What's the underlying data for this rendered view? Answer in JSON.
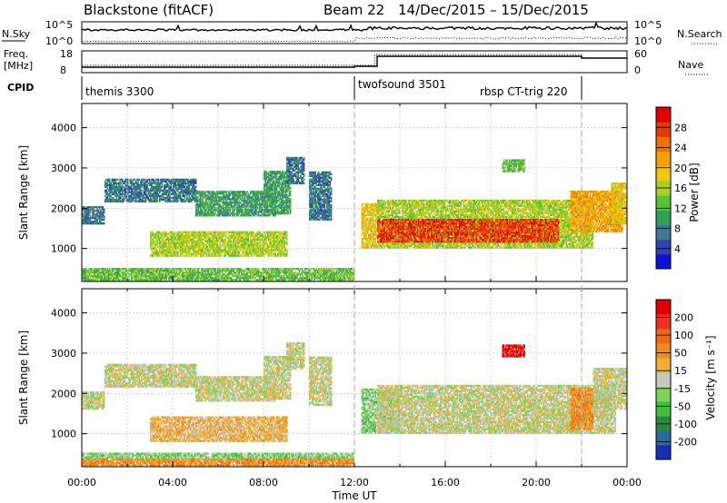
{
  "header": {
    "station": "Blackstone (fitACF)",
    "beam": "Beam 22",
    "date_range": "14/Dec/2015 – 15/Dec/2015"
  },
  "top_panels": {
    "nsky_label": "N.Sky",
    "nsky_ticks": [
      "10^5",
      "10^0"
    ],
    "nsearch_label": "N.Search",
    "nsearch_ticks": [
      "10^5",
      "10^0"
    ],
    "freq_label": "Freq.",
    "freq_unit": "[MHz]",
    "freq_ticks": [
      "18",
      "8"
    ],
    "nave_label": "Nave",
    "nave_ticks": [
      "60",
      "0"
    ],
    "cpid_label": "CPID",
    "cpid_segments": [
      {
        "name": "themis 3300",
        "start_h": 0,
        "end_h": 12
      },
      {
        "name": "twofsound 3501",
        "start_h": 12,
        "end_h": 22
      },
      {
        "name": "rbsp CT-trig 220",
        "start_h": 22,
        "end_h": 24
      }
    ]
  },
  "chart_data": [
    {
      "type": "heatmap",
      "name": "power",
      "ylabel": "Slant Range [km]",
      "yticks": [
        1000,
        2000,
        3000,
        4000
      ],
      "ylim": [
        180,
        4600
      ],
      "xlim": [
        0,
        24
      ],
      "colorbar_label": "Power [dB]",
      "colorbar_ticks": [
        "4",
        "8",
        "12",
        "16",
        "20",
        "24",
        "28"
      ],
      "colorbar_colors": [
        "#0a14d8",
        "#3244a8",
        "#3f7a8c",
        "#33a05a",
        "#5ac03a",
        "#a8d020",
        "#f0c810",
        "#f8a000",
        "#f07000",
        "#e83a00",
        "#e00000"
      ],
      "regions": [
        {
          "t0": 0.0,
          "t1": 1.0,
          "r0": 1600,
          "r1": 2050,
          "level": 2
        },
        {
          "t0": 1.0,
          "t1": 5.0,
          "r0": 2150,
          "r1": 2700,
          "level": 2
        },
        {
          "t0": 5.0,
          "t1": 8.5,
          "r0": 1800,
          "r1": 2400,
          "level": 3
        },
        {
          "t0": 8.0,
          "t1": 9.2,
          "r0": 1850,
          "r1": 2900,
          "level": 3
        },
        {
          "t0": 9.0,
          "t1": 9.8,
          "r0": 2600,
          "r1": 3250,
          "level": 2
        },
        {
          "t0": 10.0,
          "t1": 11.0,
          "r0": 1700,
          "r1": 2900,
          "level": 2
        },
        {
          "t0": 3.0,
          "t1": 9.0,
          "r0": 800,
          "r1": 1400,
          "level": 5
        },
        {
          "t0": 0.0,
          "t1": 12.0,
          "r0": 200,
          "r1": 500,
          "level": 4
        },
        {
          "t0": 12.3,
          "t1": 13.0,
          "r0": 1000,
          "r1": 2100,
          "level": 6
        },
        {
          "t0": 13.0,
          "t1": 22.5,
          "r0": 1000,
          "r1": 2200,
          "level": 5
        },
        {
          "t0": 13.0,
          "t1": 21.0,
          "r0": 1150,
          "r1": 1700,
          "level": 9
        },
        {
          "t0": 18.5,
          "t1": 19.5,
          "r0": 2900,
          "r1": 3200,
          "level": 4
        },
        {
          "t0": 21.5,
          "t1": 23.8,
          "r0": 1400,
          "r1": 2400,
          "level": 7
        },
        {
          "t0": 23.3,
          "t1": 24.0,
          "r0": 1600,
          "r1": 2600,
          "level": 6
        }
      ]
    },
    {
      "type": "heatmap",
      "name": "velocity",
      "ylabel": "Slant Range [km]",
      "yticks": [
        1000,
        2000,
        3000,
        4000
      ],
      "ylim": [
        180,
        4600
      ],
      "xlim": [
        0,
        24
      ],
      "colorbar_label": "Velocity [m s⁻¹]",
      "colorbar_ticks": [
        "200",
        "100",
        "50",
        "15",
        "-15",
        "-50",
        "-100",
        "-200"
      ],
      "colorbar_colors": [
        "#1c2db0",
        "#2a6a9c",
        "#2a8a3a",
        "#3fbf3f",
        "#7ad35a",
        "#c8c8c0",
        "#f0b030",
        "#f08a1a",
        "#f06a10",
        "#f03020",
        "#e00000"
      ],
      "regions": [
        {
          "t0": 0.0,
          "t1": 1.0,
          "r0": 1600,
          "r1": 2050,
          "level": 5
        },
        {
          "t0": 1.0,
          "t1": 5.0,
          "r0": 2150,
          "r1": 2700,
          "level": 5
        },
        {
          "t0": 5.0,
          "t1": 8.5,
          "r0": 1800,
          "r1": 2400,
          "level": 5
        },
        {
          "t0": 8.0,
          "t1": 9.2,
          "r0": 1850,
          "r1": 2900,
          "level": 5
        },
        {
          "t0": 9.0,
          "t1": 9.8,
          "r0": 2600,
          "r1": 3250,
          "level": 5
        },
        {
          "t0": 10.0,
          "t1": 11.0,
          "r0": 1700,
          "r1": 2900,
          "level": 5
        },
        {
          "t0": 3.0,
          "t1": 9.0,
          "r0": 800,
          "r1": 1400,
          "level": 6
        },
        {
          "t0": 0.0,
          "t1": 12.0,
          "r0": 350,
          "r1": 500,
          "level": 4
        },
        {
          "t0": 0.0,
          "t1": 12.0,
          "r0": 200,
          "r1": 350,
          "level": 7
        },
        {
          "t0": 12.3,
          "t1": 14.0,
          "r0": 1000,
          "r1": 2100,
          "level": 4
        },
        {
          "t0": 13.0,
          "t1": 23.5,
          "r0": 1000,
          "r1": 2200,
          "level": 5
        },
        {
          "t0": 18.5,
          "t1": 19.5,
          "r0": 2900,
          "r1": 3200,
          "level": 10
        },
        {
          "t0": 21.5,
          "t1": 22.5,
          "r0": 1100,
          "r1": 2100,
          "level": 7
        },
        {
          "t0": 22.5,
          "t1": 24.0,
          "r0": 1600,
          "r1": 2600,
          "level": 5
        }
      ]
    }
  ],
  "xaxis": {
    "label": "Time UT",
    "ticks": [
      "00:00",
      "04:00",
      "08:00",
      "12:00",
      "16:00",
      "20:00",
      "00:00"
    ]
  }
}
